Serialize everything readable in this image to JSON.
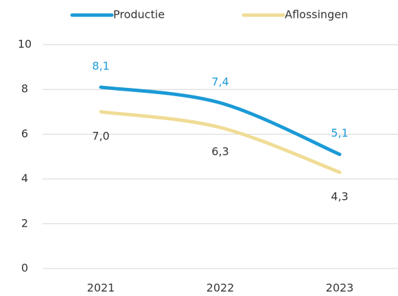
{
  "chart_data": {
    "type": "line",
    "categories": [
      "2021",
      "2022",
      "2023"
    ],
    "series": [
      {
        "name": "Productie",
        "color": "#1b9ad6",
        "values": [
          8.1,
          7.4,
          5.1
        ],
        "value_labels": [
          "8,1",
          "7,4",
          "5,1"
        ]
      },
      {
        "name": "Aflossingen",
        "color": "#f0dc96",
        "values": [
          7.0,
          6.3,
          4.3
        ],
        "value_labels": [
          "7,0",
          "6,3",
          "4,3"
        ]
      }
    ],
    "ylim": [
      0,
      10
    ],
    "yticks": [
      0,
      2,
      4,
      6,
      8,
      10
    ],
    "grid": true,
    "legend": "top"
  }
}
